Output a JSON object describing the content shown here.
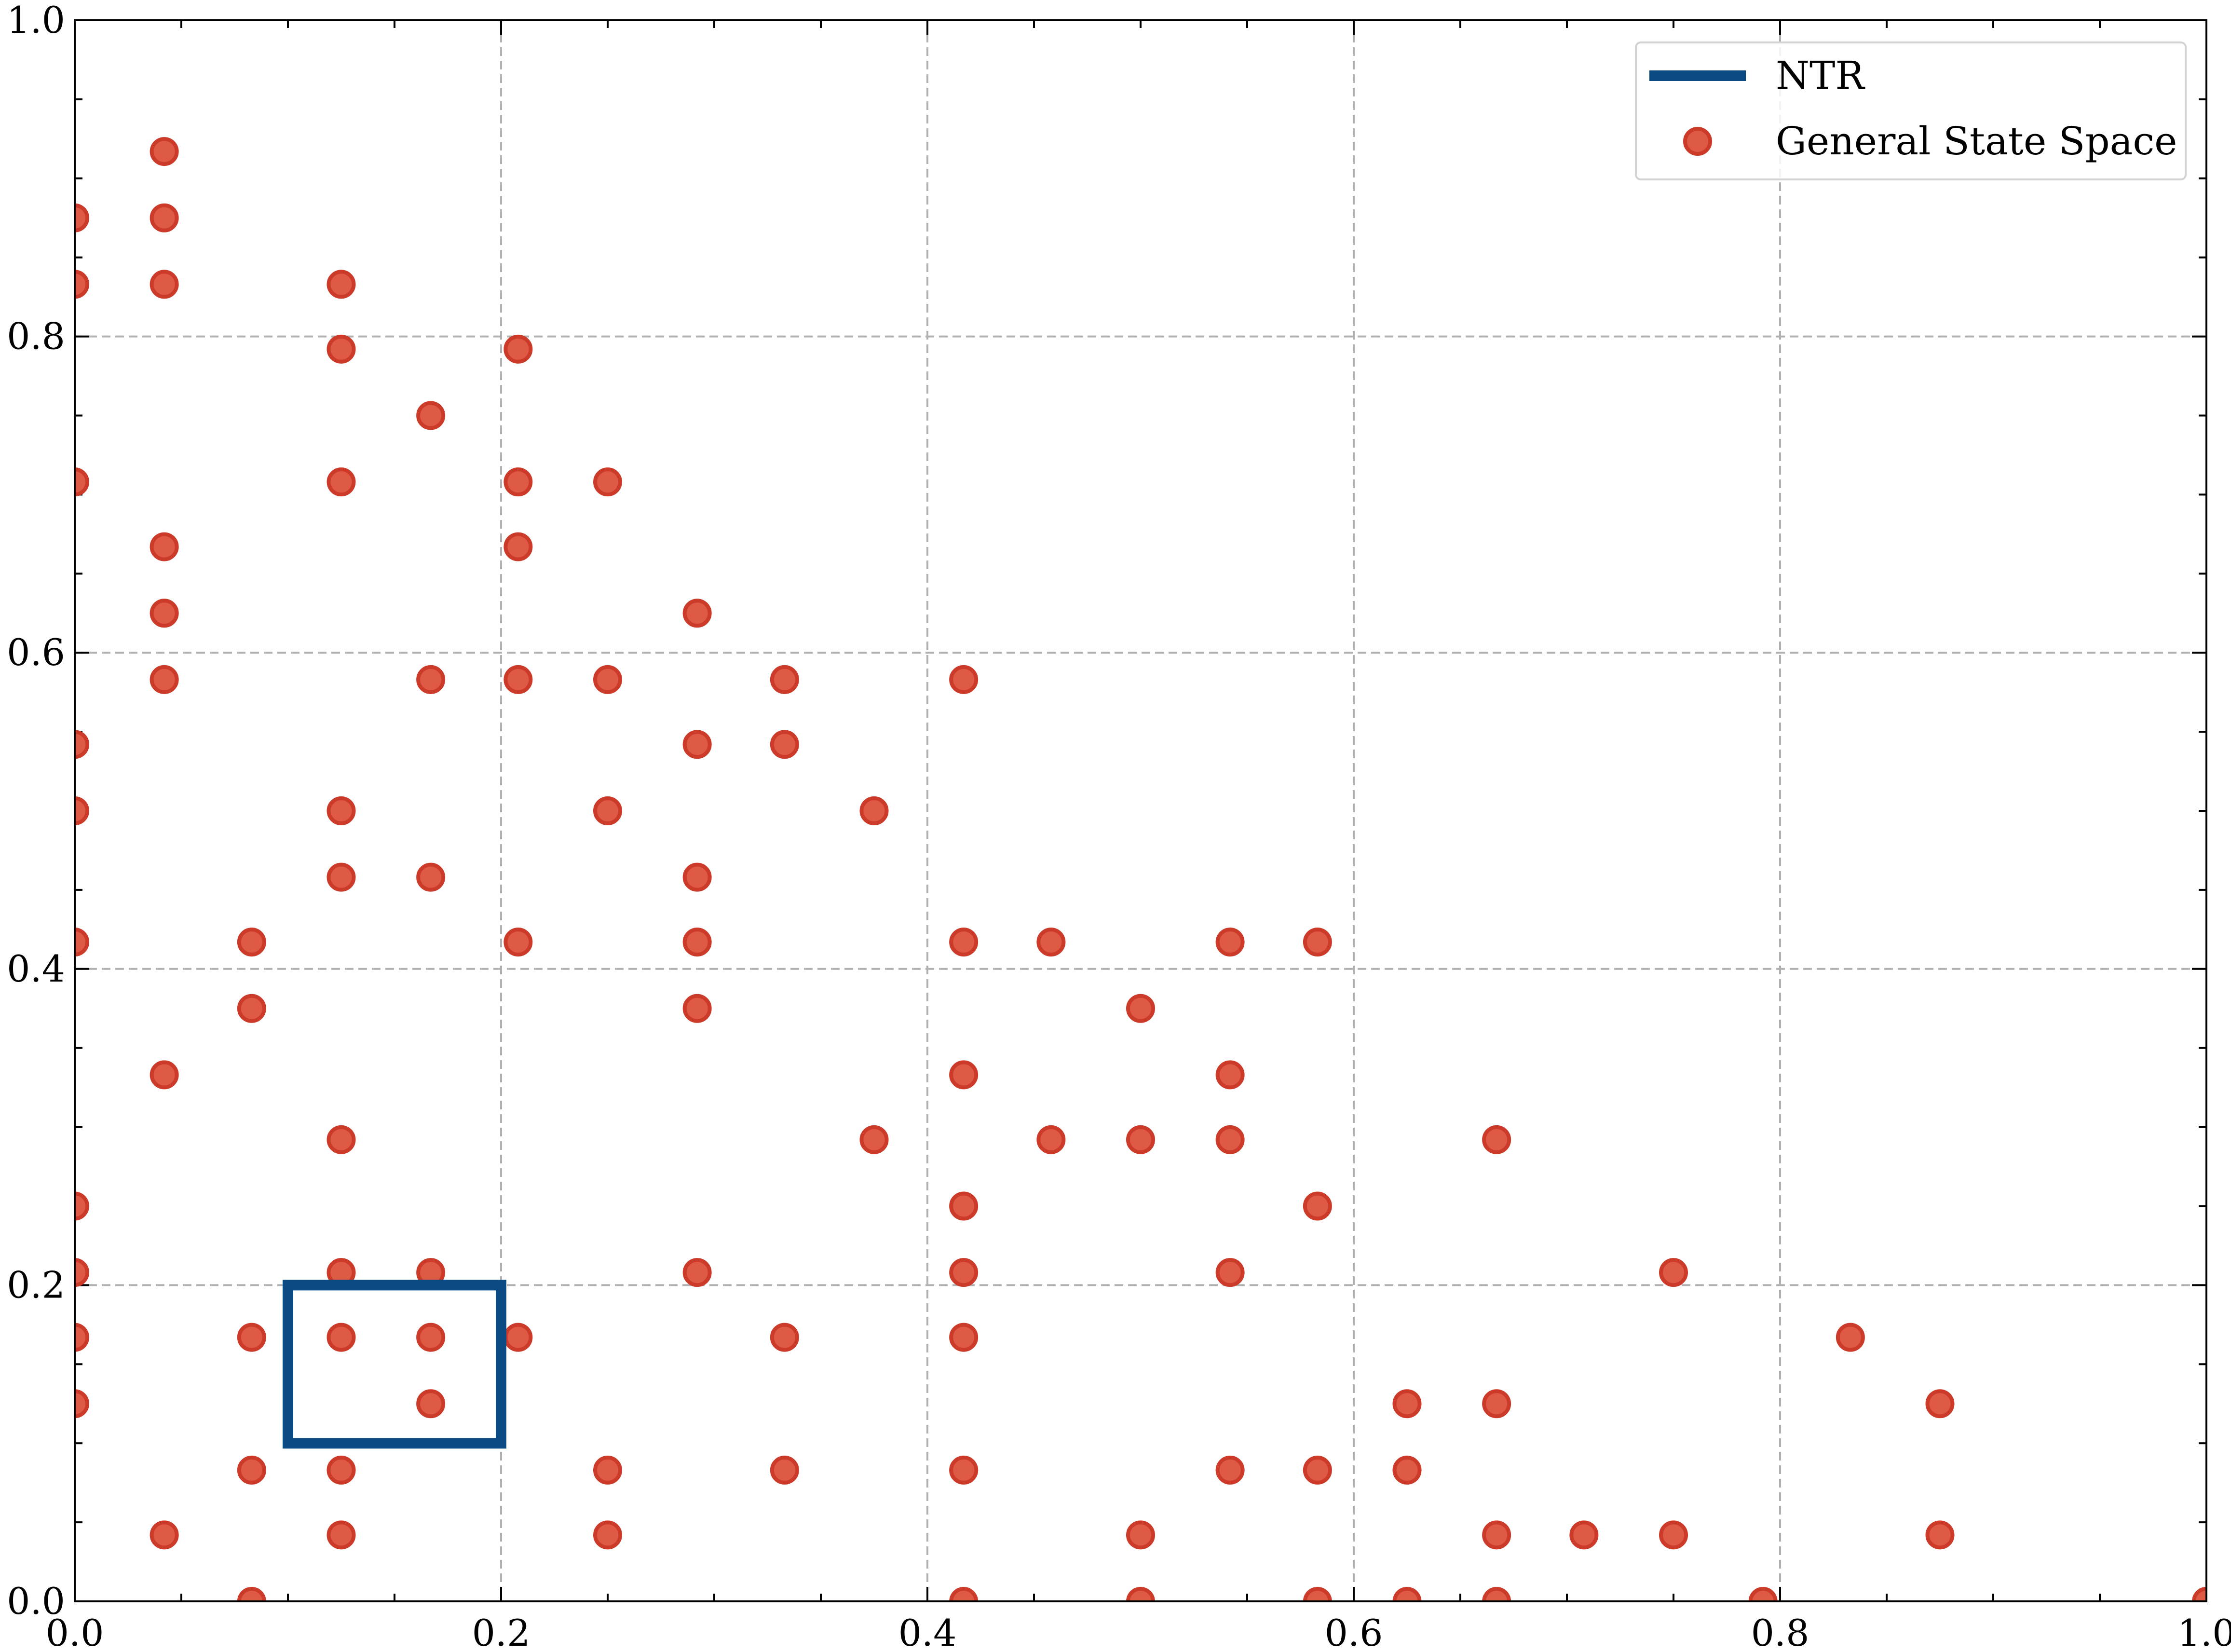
{
  "chart_data": {
    "type": "scatter",
    "xlim": [
      0,
      1
    ],
    "ylim": [
      0,
      1
    ],
    "xticks": [
      "0.0",
      "0.2",
      "0.4",
      "0.6",
      "0.8",
      "1.0"
    ],
    "yticks": [
      "0.0",
      "0.2",
      "0.4",
      "0.6",
      "0.8",
      "1.0"
    ],
    "grid": true,
    "legend_position": "top-right",
    "colors": {
      "ntr": "#0b4a82",
      "points_fill": "#de5a45",
      "points_edge": "#cc3b2a",
      "grid": "#b0b0b0"
    },
    "series": [
      {
        "name": "NTR",
        "kind": "line",
        "x": [
          0.1,
          0.2,
          0.2,
          0.1,
          0.1
        ],
        "y": [
          0.1,
          0.1,
          0.2,
          0.2,
          0.1
        ]
      },
      {
        "name": "General State Space",
        "kind": "scatter",
        "points": [
          [
            0,
            0.875
          ],
          [
            0,
            0.833
          ],
          [
            0,
            0.708
          ],
          [
            0,
            0.542
          ],
          [
            0,
            0.5
          ],
          [
            0,
            0.417
          ],
          [
            0,
            0.25
          ],
          [
            0,
            0.208
          ],
          [
            0,
            0.167
          ],
          [
            0,
            0.125
          ],
          [
            0.042,
            0.917
          ],
          [
            0.042,
            0.875
          ],
          [
            0.042,
            0.833
          ],
          [
            0.042,
            0.667
          ],
          [
            0.042,
            0.625
          ],
          [
            0.042,
            0.583
          ],
          [
            0.042,
            0.333
          ],
          [
            0.042,
            0.042
          ],
          [
            0.083,
            0.417
          ],
          [
            0.083,
            0.375
          ],
          [
            0.083,
            0.167
          ],
          [
            0.083,
            0.083
          ],
          [
            0.083,
            0
          ],
          [
            0.125,
            0.833
          ],
          [
            0.125,
            0.792
          ],
          [
            0.125,
            0.708
          ],
          [
            0.125,
            0.5
          ],
          [
            0.125,
            0.458
          ],
          [
            0.125,
            0.292
          ],
          [
            0.125,
            0.208
          ],
          [
            0.125,
            0.167
          ],
          [
            0.125,
            0.083
          ],
          [
            0.125,
            0.042
          ],
          [
            0.167,
            0.75
          ],
          [
            0.167,
            0.583
          ],
          [
            0.167,
            0.458
          ],
          [
            0.167,
            0.208
          ],
          [
            0.167,
            0.167
          ],
          [
            0.167,
            0.125
          ],
          [
            0.208,
            0.792
          ],
          [
            0.208,
            0.708
          ],
          [
            0.208,
            0.667
          ],
          [
            0.208,
            0.583
          ],
          [
            0.208,
            0.417
          ],
          [
            0.208,
            0.167
          ],
          [
            0.25,
            0.708
          ],
          [
            0.25,
            0.583
          ],
          [
            0.25,
            0.5
          ],
          [
            0.25,
            0.083
          ],
          [
            0.25,
            0.042
          ],
          [
            0.292,
            0.625
          ],
          [
            0.292,
            0.542
          ],
          [
            0.292,
            0.458
          ],
          [
            0.292,
            0.417
          ],
          [
            0.292,
            0.375
          ],
          [
            0.292,
            0.208
          ],
          [
            0.333,
            0.583
          ],
          [
            0.333,
            0.542
          ],
          [
            0.333,
            0.167
          ],
          [
            0.333,
            0.083
          ],
          [
            0.375,
            0.5
          ],
          [
            0.375,
            0.292
          ],
          [
            0.417,
            0.583
          ],
          [
            0.417,
            0.417
          ],
          [
            0.417,
            0.333
          ],
          [
            0.417,
            0.25
          ],
          [
            0.417,
            0.208
          ],
          [
            0.417,
            0.167
          ],
          [
            0.417,
            0.083
          ],
          [
            0.417,
            0
          ],
          [
            0.458,
            0.417
          ],
          [
            0.458,
            0.292
          ],
          [
            0.5,
            0.375
          ],
          [
            0.5,
            0.292
          ],
          [
            0.5,
            0.042
          ],
          [
            0.5,
            0
          ],
          [
            0.542,
            0.417
          ],
          [
            0.542,
            0.333
          ],
          [
            0.542,
            0.292
          ],
          [
            0.542,
            0.208
          ],
          [
            0.542,
            0.083
          ],
          [
            0.583,
            0.417
          ],
          [
            0.583,
            0.25
          ],
          [
            0.583,
            0.083
          ],
          [
            0.583,
            0
          ],
          [
            0.625,
            0.125
          ],
          [
            0.625,
            0.083
          ],
          [
            0.625,
            0
          ],
          [
            0.667,
            0.292
          ],
          [
            0.667,
            0.125
          ],
          [
            0.667,
            0.042
          ],
          [
            0.667,
            0
          ],
          [
            0.708,
            0.042
          ],
          [
            0.75,
            0.208
          ],
          [
            0.75,
            0.042
          ],
          [
            0.792,
            0
          ],
          [
            0.833,
            0.167
          ],
          [
            0.875,
            0.125
          ],
          [
            0.875,
            0.042
          ],
          [
            1.0,
            0
          ]
        ]
      }
    ]
  }
}
